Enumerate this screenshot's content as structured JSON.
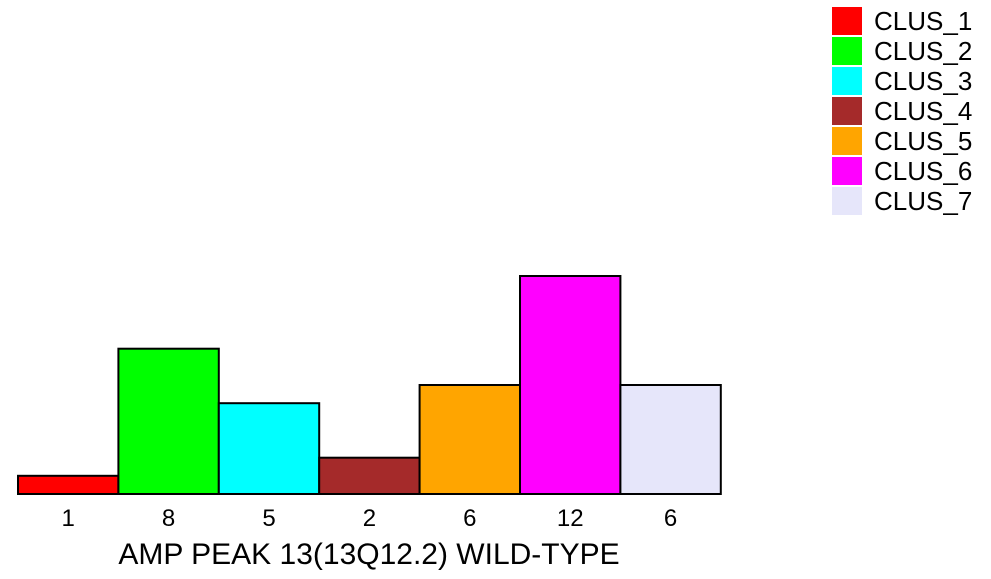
{
  "chart_data": {
    "type": "bar",
    "categories": [
      "CLUS_1",
      "CLUS_2",
      "CLUS_3",
      "CLUS_4",
      "CLUS_5",
      "CLUS_6",
      "CLUS_7"
    ],
    "values": [
      1,
      8,
      5,
      2,
      6,
      12,
      6
    ],
    "value_labels": [
      "1",
      "8",
      "5",
      "2",
      "6",
      "12",
      "6"
    ],
    "colors": [
      "#ff0000",
      "#00ff00",
      "#00ffff",
      "#a52a2a",
      "#ffa500",
      "#ff00ff",
      "#e6e6fa"
    ],
    "xlabel": "AMP PEAK 13(13Q12.2) WILD-TYPE",
    "ylim": [
      0,
      12
    ],
    "legend_position": "top-right",
    "grid": false,
    "legend": [
      "CLUS_1",
      "CLUS_2",
      "CLUS_3",
      "CLUS_4",
      "CLUS_5",
      "CLUS_6",
      "CLUS_7"
    ]
  }
}
